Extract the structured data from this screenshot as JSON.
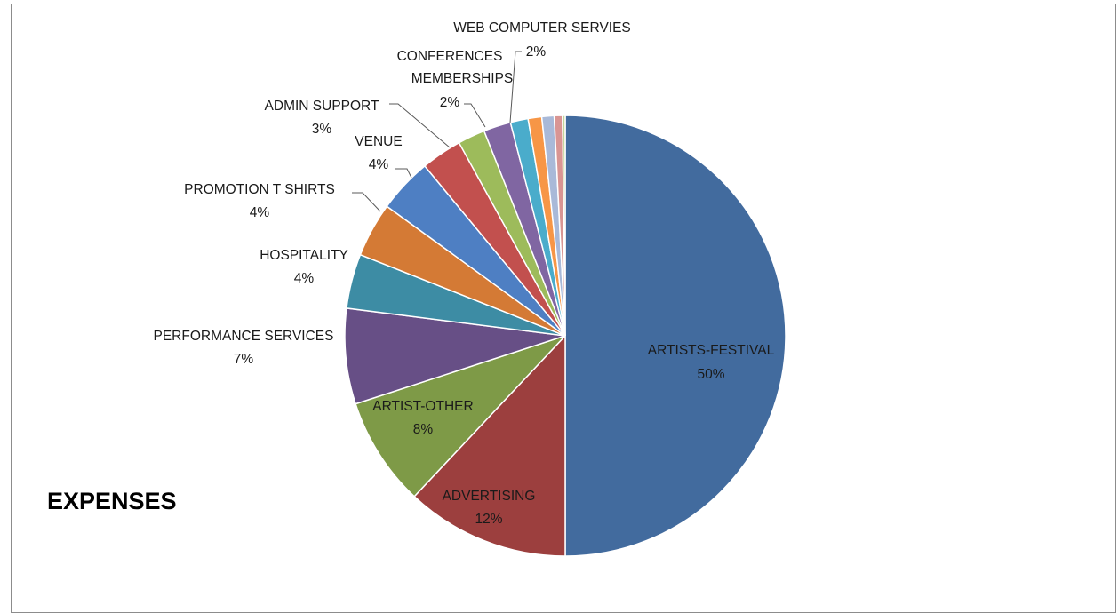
{
  "chart_data": {
    "type": "pie",
    "title": "EXPENSES",
    "slices": [
      {
        "name": "ARTISTS-FESTIVAL",
        "value": 50,
        "pct_label": "50%",
        "color": "#426b9e"
      },
      {
        "name": "ADVERTISING",
        "value": 12,
        "pct_label": "12%",
        "color": "#9c3f3e"
      },
      {
        "name": "ARTIST-OTHER",
        "value": 8,
        "pct_label": "8%",
        "color": "#7e9a47"
      },
      {
        "name": "PERFORMANCE SERVICES",
        "value": 7,
        "pct_label": "7%",
        "color": "#674f86"
      },
      {
        "name": "HOSPITALITY",
        "value": 4,
        "pct_label": "4%",
        "color": "#3d8ca4"
      },
      {
        "name": "PROMOTION T SHIRTS",
        "value": 4,
        "pct_label": "4%",
        "color": "#d47a35"
      },
      {
        "name": "VENUE",
        "value": 4,
        "pct_label": "4%",
        "color": "#4e7fc3"
      },
      {
        "name": "ADMIN SUPPORT",
        "value": 3,
        "pct_label": "3%",
        "color": "#c2504e"
      },
      {
        "name": "CONFERENCES MEMBERSHIPS",
        "value": 2,
        "pct_label": "2%",
        "color": "#9dbb5b"
      },
      {
        "name": "WEB COMPUTER SERVIES",
        "value": 2,
        "pct_label": "2%",
        "color": "#8066a2"
      },
      {
        "name": "",
        "value": 1.3,
        "pct_label": "",
        "color": "#4aaccb"
      },
      {
        "name": "",
        "value": 1.0,
        "pct_label": "",
        "color": "#f79646"
      },
      {
        "name": "",
        "value": 0.9,
        "pct_label": "",
        "color": "#a9b9d8"
      },
      {
        "name": "",
        "value": 0.6,
        "pct_label": "",
        "color": "#d99593"
      },
      {
        "name": "",
        "value": 0.2,
        "pct_label": "",
        "color": "#c3d69b"
      }
    ],
    "legend": "none"
  }
}
